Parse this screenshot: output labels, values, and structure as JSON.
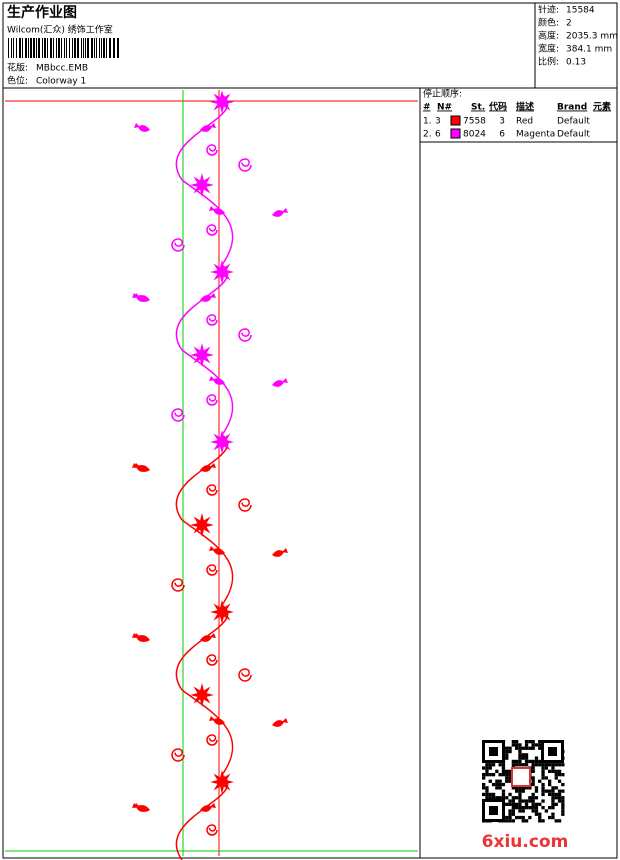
{
  "header": {
    "title": "生产作业图",
    "studio": "Wilcom(汇众) 绣饰工作室",
    "design_label": "花版:",
    "design_value": "MBbcc.EMB",
    "colorway_label": "色位:",
    "colorway_value": "Colorway 1"
  },
  "info": [
    {
      "label": "针迹:",
      "value": "15584"
    },
    {
      "label": "颜色:",
      "value": "2"
    },
    {
      "label": "高度:",
      "value": "2035.3 mm"
    },
    {
      "label": "宽度:",
      "value": "384.1 mm"
    },
    {
      "label": "比例:",
      "value": "0.13"
    }
  ],
  "sequence": {
    "title": "停止顺序:",
    "columns": [
      "#",
      "N#",
      "St.",
      "代码",
      "描述",
      "Brand",
      "元素"
    ],
    "rows": [
      {
        "cells": [
          "1.",
          "3",
          "7558",
          "3",
          "Red",
          "Default"
        ],
        "color": "#ff0000"
      },
      {
        "cells": [
          "2.",
          "6",
          "8024",
          "6",
          "Magenta",
          "Default"
        ],
        "color": "#ff00ff"
      }
    ]
  },
  "watermark": "6xiu.com"
}
